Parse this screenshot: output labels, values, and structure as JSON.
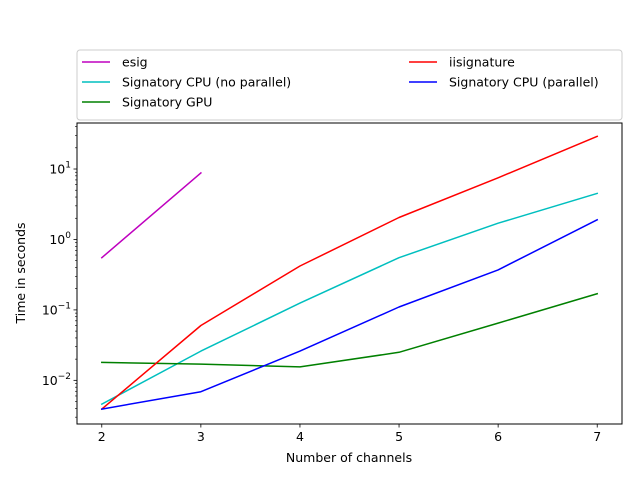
{
  "chart_data": {
    "type": "line",
    "title": "",
    "xlabel": "Number of channels",
    "ylabel": "Time in seconds",
    "y_scale": "log",
    "xlim": [
      1.75,
      7.25
    ],
    "ylim": [
      0.0024,
      45
    ],
    "grid": false,
    "legend_placement": "top, outside plot, two columns",
    "x_ticks": [
      2,
      3,
      4,
      5,
      6,
      7
    ],
    "x_tick_labels": [
      "2",
      "3",
      "4",
      "5",
      "6",
      "7"
    ],
    "y_ticks": [
      {
        "value": 0.01,
        "base": "10",
        "exp": "−2"
      },
      {
        "value": 0.1,
        "base": "10",
        "exp": "−1"
      },
      {
        "value": 1,
        "base": "10",
        "exp": "0"
      },
      {
        "value": 10,
        "base": "10",
        "exp": "1"
      }
    ],
    "series": [
      {
        "name": "esig",
        "color": "#bf00bf",
        "x": [
          2,
          3
        ],
        "y": [
          0.55,
          8.8
        ]
      },
      {
        "name": "Signatory CPU (no parallel)",
        "color": "#00bfbf",
        "x": [
          2,
          3,
          4,
          5,
          6,
          7
        ],
        "y": [
          0.0046,
          0.026,
          0.125,
          0.55,
          1.7,
          4.5
        ]
      },
      {
        "name": "Signatory GPU",
        "color": "#008000",
        "x": [
          2,
          3,
          4,
          5,
          6,
          7
        ],
        "y": [
          0.018,
          0.017,
          0.0155,
          0.025,
          0.065,
          0.17
        ]
      },
      {
        "name": "iisignature",
        "color": "#ff0000",
        "x": [
          2,
          3,
          4,
          5,
          6,
          7
        ],
        "y": [
          0.0039,
          0.06,
          0.42,
          2.05,
          7.5,
          29
        ]
      },
      {
        "name": "Signatory CPU (parallel)",
        "color": "#0000ff",
        "x": [
          2,
          3,
          4,
          5,
          6,
          7
        ],
        "y": [
          0.0039,
          0.0069,
          0.026,
          0.11,
          0.37,
          1.9
        ]
      }
    ]
  }
}
